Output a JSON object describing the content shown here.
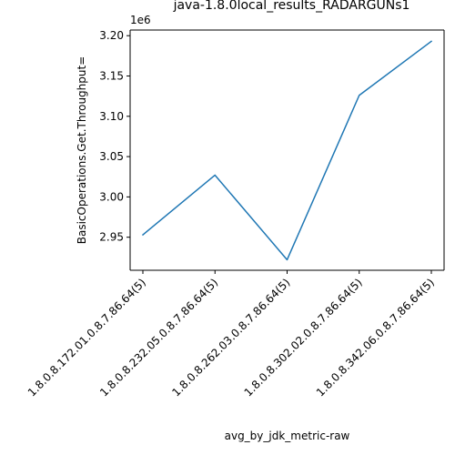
{
  "chart_data": {
    "type": "line",
    "title": "java-1.8.0local_results_RADARGUNs1",
    "xlabel": "avg_by_jdk_metric-raw",
    "ylabel": "BasicOperations.Get.Throughput=",
    "y_offset_label": "1e6",
    "categories": [
      "1.8.0.8.172.01.0.8.7.86.64(5)",
      "1.8.0.8.232.05.0.8.7.86.64(5)",
      "1.8.0.8.262.03.0.8.7.86.64(5)",
      "1.8.0.8.302.02.0.8.7.86.64(5)",
      "1.8.0.8.342.06.0.8.7.86.64(5)"
    ],
    "series": [
      {
        "values": [
          2953000,
          3027000,
          2922000,
          3126000,
          3193000
        ],
        "color": "#1f77b4"
      }
    ],
    "y_ticks": [
      2.95,
      3.0,
      3.05,
      3.1,
      3.15,
      3.2
    ],
    "y_tick_labels": [
      "2.95",
      "3.00",
      "3.05",
      "3.10",
      "3.15",
      "3.20"
    ],
    "y_scale": 1000000,
    "ylim": [
      2909000,
      3207000
    ],
    "grid": false,
    "legend": "none"
  }
}
